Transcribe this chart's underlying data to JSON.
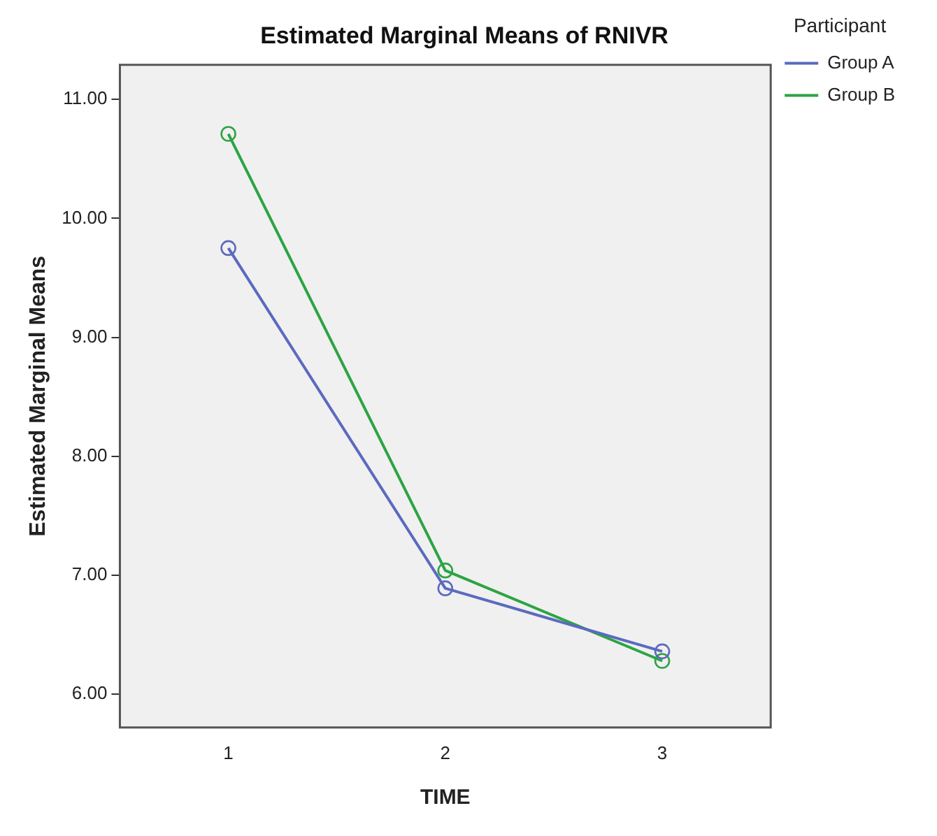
{
  "chart_data": {
    "type": "line",
    "title": "Estimated Marginal Means of RNIVR",
    "xlabel": "TIME",
    "ylabel": "Estimated Marginal Means",
    "legend_title": "Participant",
    "categories": [
      "1",
      "2",
      "3"
    ],
    "series": [
      {
        "name": "Group A",
        "color": "#5b6abf",
        "values": [
          9.75,
          6.89,
          6.36
        ]
      },
      {
        "name": "Group B",
        "color": "#2ca443",
        "values": [
          10.71,
          7.04,
          6.28
        ]
      }
    ],
    "ylim": [
      5.72,
      11.29
    ],
    "yticks": [
      {
        "value": 6,
        "label": "6.00"
      },
      {
        "value": 7,
        "label": "7.00"
      },
      {
        "value": 8,
        "label": "8.00"
      },
      {
        "value": 9,
        "label": "9.00"
      },
      {
        "value": 10,
        "label": "10.00"
      },
      {
        "value": 11,
        "label": "11.00"
      }
    ],
    "grid": false,
    "legend": "top right",
    "marker": "circle",
    "line_style": "solid"
  }
}
